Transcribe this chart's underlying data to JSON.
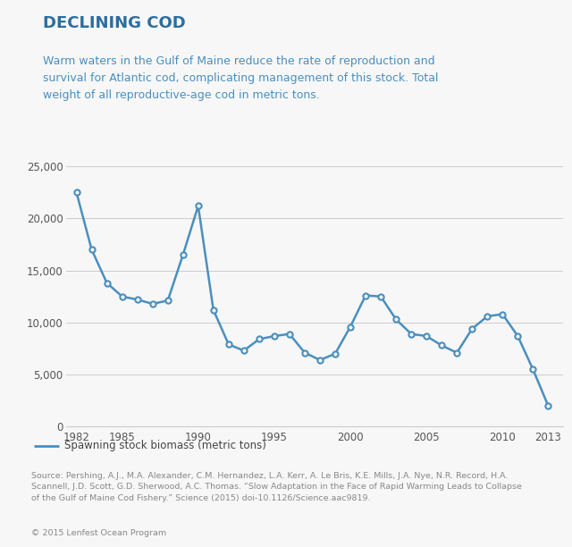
{
  "title": "DECLINING COD",
  "subtitle": "Warm waters in the Gulf of Maine reduce the rate of reproduction and\nsurvival for Atlantic cod, complicating management of this stock. Total\nweight of all reproductive-age cod in metric tons.",
  "line_color": "#4a8fbe",
  "background_color": "#f7f7f7",
  "years": [
    1982,
    1983,
    1984,
    1985,
    1986,
    1987,
    1988,
    1989,
    1990,
    1991,
    1992,
    1993,
    1994,
    1995,
    1996,
    1997,
    1998,
    1999,
    2000,
    2001,
    2002,
    2003,
    2004,
    2005,
    2006,
    2007,
    2008,
    2009,
    2010,
    2011,
    2012,
    2013
  ],
  "values": [
    22500,
    17000,
    13800,
    12500,
    12200,
    11800,
    12100,
    16500,
    21200,
    11200,
    7900,
    7300,
    8400,
    8700,
    8900,
    7100,
    6400,
    7000,
    9600,
    12600,
    12500,
    10300,
    8900,
    8700,
    7800,
    7100,
    9400,
    10600,
    10800,
    8700,
    5500,
    2000
  ],
  "ylim": [
    0,
    26000
  ],
  "yticks": [
    0,
    5000,
    10000,
    15000,
    20000,
    25000
  ],
  "xticks": [
    1982,
    1985,
    1990,
    1995,
    2000,
    2005,
    2010,
    2013
  ],
  "legend_label": "Spawning stock biomass (metric tons)",
  "source_line1": "Source: Pershing, A.J., M.A. Alexander, C.M. Hernandez, L.A. Kerr, A. Le Bris, K.E. Mills, J.A. Nye, N.R. Record, H.A.",
  "source_line2": "Scannell, J.D. Scott, G.D. Sherwood, A.C. Thomas. “Slow Adaptation in the Face of Rapid Warming Leads to Collapse",
  "source_line3": "of the Gulf of Maine Cod Fishery.” Science (2015) doi-10.1126/Science.aac9819.",
  "copyright_text": "© 2015 Lenfest Ocean Program",
  "title_color": "#2c6e9e",
  "subtitle_color": "#4a8fbe",
  "accent_bar_color": "#4a8fbe",
  "grid_color": "#cccccc",
  "tick_label_color": "#555555",
  "source_color": "#888888",
  "border_color": "#cccccc"
}
